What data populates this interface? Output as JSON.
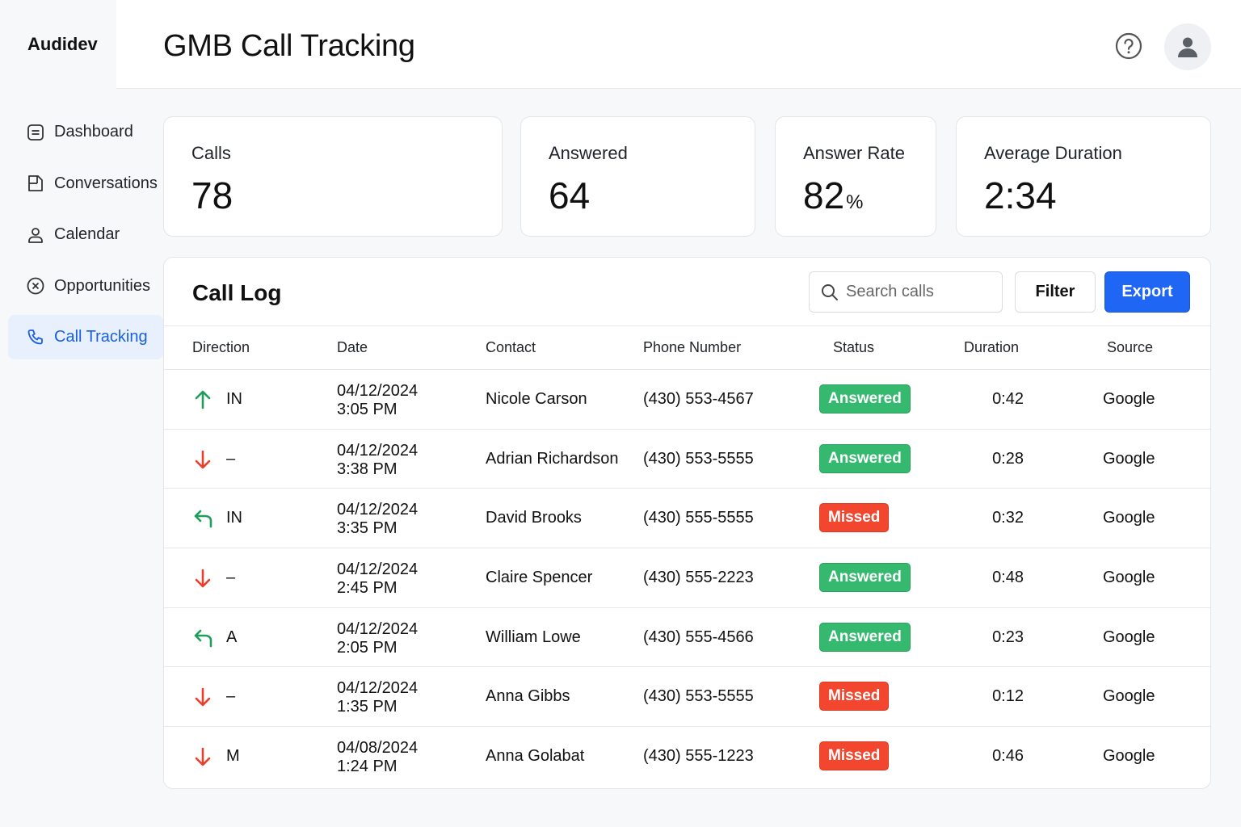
{
  "brand": "Audidev",
  "header": {
    "title": "GMB Call Tracking",
    "help_icon": "help-circle-icon",
    "avatar_icon": "user-icon"
  },
  "sidebar": {
    "items": [
      {
        "label": "Dashboard",
        "icon": "list-icon",
        "active": false
      },
      {
        "label": "Conversations",
        "icon": "document-icon",
        "active": false
      },
      {
        "label": "Calendar",
        "icon": "person-icon",
        "active": false
      },
      {
        "label": "Opportunities",
        "icon": "x-circle-icon",
        "active": false
      },
      {
        "label": "Call Tracking",
        "icon": "phone-icon",
        "active": true
      }
    ]
  },
  "stats": [
    {
      "label": "Calls",
      "value": "78",
      "unit": ""
    },
    {
      "label": "Answered",
      "value": "64",
      "unit": ""
    },
    {
      "label": "Answer Rate",
      "value": "82",
      "unit": "%"
    },
    {
      "label": "Average Duration",
      "value": "2:34",
      "unit": ""
    }
  ],
  "call_log": {
    "title": "Call Log",
    "search_placeholder": "Search calls",
    "filter_label": "Filter",
    "export_label": "Export",
    "columns": [
      "Direction",
      "Date",
      "Contact",
      "Phone Number",
      "Status",
      "Duration",
      "Source"
    ],
    "rows": [
      {
        "direction_icon": "arrow-up-icon",
        "direction": "IN",
        "date": "04/12/2024",
        "time": "3:05 PM",
        "contact": "Nicole Carson",
        "phone": "(430) 553-4567",
        "status": "Answered",
        "duration": "0:42",
        "source": "Google"
      },
      {
        "direction_icon": "arrow-down-icon",
        "direction": "–",
        "date": "04/12/2024",
        "time": "3:38 PM",
        "contact": "Adrian Richardson",
        "phone": "(430) 553-5555",
        "status": "Answered",
        "duration": "0:28",
        "source": "Google"
      },
      {
        "direction_icon": "arrow-return-icon",
        "direction": "IN",
        "date": "04/12/2024",
        "time": "3:35 PM",
        "contact": "David Brooks",
        "phone": "(430) 555-5555",
        "status": "Missed",
        "duration": "0:32",
        "source": "Google"
      },
      {
        "direction_icon": "arrow-down-icon",
        "direction": "–",
        "date": "04/12/2024",
        "time": "2:45 PM",
        "contact": "Claire Spencer",
        "phone": "(430) 555-2223",
        "status": "Answered",
        "duration": "0:48",
        "source": "Google"
      },
      {
        "direction_icon": "arrow-return-icon",
        "direction": "A",
        "date": "04/12/2024",
        "time": "2:05 PM",
        "contact": "William Lowe",
        "phone": "(430) 555-4566",
        "status": "Answered",
        "duration": "0:23",
        "source": "Google"
      },
      {
        "direction_icon": "arrow-down-icon",
        "direction": "–",
        "date": "04/12/2024",
        "time": "1:35 PM",
        "contact": "Anna Gibbs",
        "phone": "(430) 553-5555",
        "status": "Missed",
        "duration": "0:12",
        "source": "Google"
      },
      {
        "direction_icon": "arrow-down-icon",
        "direction": "M",
        "date": "04/08/2024",
        "time": "1:24 PM",
        "contact": "Anna Golabat",
        "phone": "(430) 555-1223",
        "status": "Missed",
        "duration": "0:46",
        "source": "Google"
      }
    ]
  },
  "colors": {
    "accent": "#1f66f5",
    "answered": "#34b96e",
    "missed": "#f2462e",
    "arrow_up": "#1e9e5a",
    "arrow_down": "#e8402b"
  }
}
